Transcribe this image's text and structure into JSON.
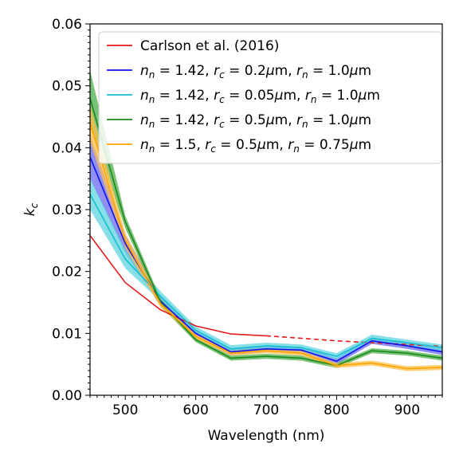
{
  "chart_data": {
    "type": "line",
    "xlabel": "Wavelength (nm)",
    "ylabel_base": "k",
    "ylabel_sub": "c",
    "xlim": [
      450,
      950
    ],
    "ylim": [
      0.0,
      0.06
    ],
    "x_ticks": [
      500,
      600,
      700,
      800,
      900
    ],
    "y_ticks": [
      0.0,
      0.01,
      0.02,
      0.03,
      0.04,
      0.05,
      0.06
    ],
    "y_tick_labels": [
      "0.00",
      "0.01",
      "0.02",
      "0.03",
      "0.04",
      "0.05",
      "0.06"
    ],
    "grid": false,
    "legend_position": "top-right",
    "series": [
      {
        "legend_parts": [
          {
            "t": "Carlson et al. (2016)",
            "s": "normal"
          }
        ],
        "color": "#e41a1c",
        "x": [
          450,
          500,
          550,
          600,
          650,
          700
        ],
        "y": [
          0.0258,
          0.0182,
          0.0138,
          0.0112,
          0.0099,
          0.0096
        ],
        "dashed_x": [
          700,
          750,
          800,
          850,
          900,
          950
        ],
        "dashed_y": [
          0.0096,
          0.0092,
          0.0088,
          0.0085,
          0.0082,
          0.0079
        ]
      },
      {
        "legend_parts": [
          {
            "t": "n",
            "s": "it"
          },
          {
            "t": "n",
            "s": "sub"
          },
          {
            "t": " = 1.42, ",
            "s": "normal"
          },
          {
            "t": "r",
            "s": "it"
          },
          {
            "t": "c",
            "s": "sub"
          },
          {
            "t": " = 0.2",
            "s": "normal"
          },
          {
            "t": "μ",
            "s": "it"
          },
          {
            "t": "m, ",
            "s": "normal"
          },
          {
            "t": "r",
            "s": "it"
          },
          {
            "t": "n",
            "s": "sub"
          },
          {
            "t": " = 1.0",
            "s": "normal"
          },
          {
            "t": "μ",
            "s": "it"
          },
          {
            "t": "m",
            "s": "normal"
          }
        ],
        "color": "#1010ee",
        "band_color": "#6a6af0",
        "x": [
          450,
          500,
          550,
          600,
          650,
          700,
          750,
          800,
          850,
          900,
          950
        ],
        "y": [
          0.0385,
          0.0245,
          0.0152,
          0.01,
          0.007,
          0.0075,
          0.0073,
          0.0055,
          0.0088,
          0.008,
          0.007
        ],
        "err": [
          0.0035,
          0.0015,
          0.0007,
          0.0005,
          0.0005,
          0.0005,
          0.0005,
          0.0005,
          0.0005,
          0.0005,
          0.0005
        ]
      },
      {
        "legend_parts": [
          {
            "t": "n",
            "s": "it"
          },
          {
            "t": "n",
            "s": "sub"
          },
          {
            "t": " = 1.42, ",
            "s": "normal"
          },
          {
            "t": "r",
            "s": "it"
          },
          {
            "t": "c",
            "s": "sub"
          },
          {
            "t": " = 0.05",
            "s": "normal"
          },
          {
            "t": "μ",
            "s": "it"
          },
          {
            "t": "m, ",
            "s": "normal"
          },
          {
            "t": "r",
            "s": "it"
          },
          {
            "t": "n",
            "s": "sub"
          },
          {
            "t": " = 1.0",
            "s": "normal"
          },
          {
            "t": "μ",
            "s": "it"
          },
          {
            "t": "m",
            "s": "normal"
          }
        ],
        "color": "#17becf",
        "band_color": "#5fd6e0",
        "x": [
          450,
          500,
          550,
          600,
          650,
          700,
          750,
          800,
          850,
          900,
          950
        ],
        "y": [
          0.0325,
          0.022,
          0.016,
          0.0105,
          0.0075,
          0.008,
          0.0077,
          0.0063,
          0.0092,
          0.0085,
          0.0077
        ],
        "err": [
          0.0025,
          0.0015,
          0.0008,
          0.0006,
          0.0006,
          0.0005,
          0.0005,
          0.0005,
          0.0006,
          0.0005,
          0.0005
        ]
      },
      {
        "legend_parts": [
          {
            "t": "n",
            "s": "it"
          },
          {
            "t": "n",
            "s": "sub"
          },
          {
            "t": " = 1.42, ",
            "s": "normal"
          },
          {
            "t": "r",
            "s": "it"
          },
          {
            "t": "c",
            "s": "sub"
          },
          {
            "t": " = 0.5",
            "s": "normal"
          },
          {
            "t": "μ",
            "s": "it"
          },
          {
            "t": "m, ",
            "s": "normal"
          },
          {
            "t": "r",
            "s": "it"
          },
          {
            "t": "n",
            "s": "sub"
          },
          {
            "t": " = 1.0",
            "s": "normal"
          },
          {
            "t": "μ",
            "s": "it"
          },
          {
            "t": "m",
            "s": "normal"
          }
        ],
        "color": "#1a8a1a",
        "band_color": "#4caf4c",
        "x": [
          450,
          500,
          550,
          600,
          650,
          700,
          750,
          800,
          850,
          900,
          950
        ],
        "y": [
          0.048,
          0.028,
          0.015,
          0.009,
          0.006,
          0.0063,
          0.006,
          0.0048,
          0.0072,
          0.0068,
          0.006
        ],
        "err": [
          0.0045,
          0.001,
          0.0006,
          0.0004,
          0.0004,
          0.0004,
          0.0004,
          0.0004,
          0.0004,
          0.0004,
          0.0004
        ]
      },
      {
        "legend_parts": [
          {
            "t": "n",
            "s": "it"
          },
          {
            "t": "n",
            "s": "sub"
          },
          {
            "t": " = 1.5, ",
            "s": "normal"
          },
          {
            "t": "r",
            "s": "it"
          },
          {
            "t": "c",
            "s": "sub"
          },
          {
            "t": " = 0.5",
            "s": "normal"
          },
          {
            "t": "μ",
            "s": "it"
          },
          {
            "t": "m, ",
            "s": "normal"
          },
          {
            "t": "r",
            "s": "it"
          },
          {
            "t": "n",
            "s": "sub"
          },
          {
            "t": " = 0.75",
            "s": "normal"
          },
          {
            "t": "μ",
            "s": "it"
          },
          {
            "t": "m",
            "s": "normal"
          }
        ],
        "color": "#ffa500",
        "band_color": "#ffc04d",
        "x": [
          450,
          500,
          550,
          600,
          650,
          700,
          750,
          800,
          850,
          900,
          950
        ],
        "y": [
          0.044,
          0.025,
          0.0148,
          0.0095,
          0.0068,
          0.0072,
          0.0068,
          0.0048,
          0.0052,
          0.0043,
          0.0045
        ],
        "err": [
          0.003,
          0.0012,
          0.0006,
          0.0004,
          0.0004,
          0.0004,
          0.0004,
          0.0004,
          0.0004,
          0.0004,
          0.0004
        ]
      }
    ]
  }
}
